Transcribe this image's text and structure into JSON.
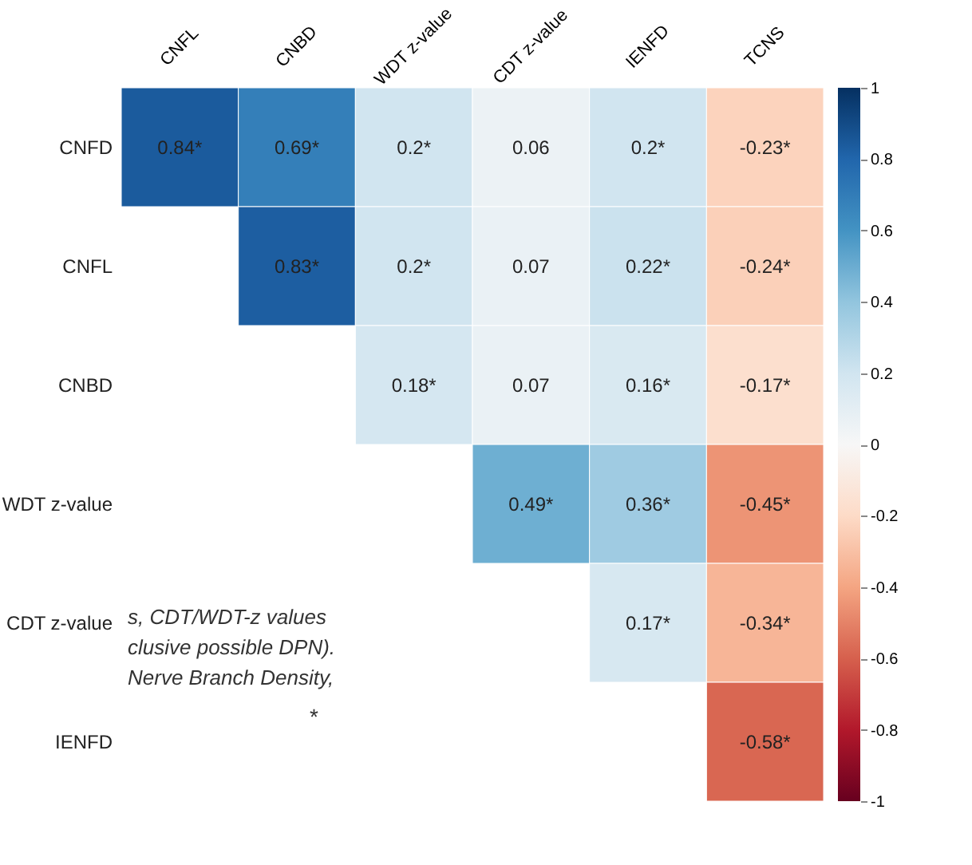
{
  "chart_data": {
    "type": "heatmap",
    "categories": [
      "CNFL",
      "CNBD",
      "WDT z-value",
      "CDT z-value",
      "IENFD",
      "TCNS"
    ],
    "y_categories": [
      "CNFD",
      "CNFL",
      "CNBD",
      "WDT z-value",
      "CDT z-value",
      "IENFD"
    ],
    "cells": [
      [
        0.84,
        0.69,
        0.2,
        0.06,
        0.2,
        -0.23
      ],
      [
        null,
        0.83,
        0.2,
        0.07,
        0.22,
        -0.24
      ],
      [
        null,
        null,
        0.18,
        0.07,
        0.16,
        -0.17
      ],
      [
        null,
        null,
        null,
        0.49,
        0.36,
        -0.45
      ],
      [
        null,
        null,
        null,
        null,
        0.17,
        -0.34
      ],
      [
        null,
        null,
        null,
        null,
        null,
        -0.58
      ]
    ],
    "cell_labels": [
      [
        "0.84*",
        "0.69*",
        "0.2*",
        "0.06",
        "0.2*",
        "-0.23*"
      ],
      [
        null,
        "0.83*",
        "0.2*",
        "0.07",
        "0.22*",
        "-0.24*"
      ],
      [
        null,
        null,
        "0.18*",
        "0.07",
        "0.16*",
        "-0.17*"
      ],
      [
        null,
        null,
        null,
        "0.49*",
        "0.36*",
        "-0.45*"
      ],
      [
        null,
        null,
        null,
        null,
        "0.17*",
        "-0.34*"
      ],
      [
        null,
        null,
        null,
        null,
        null,
        "-0.58*"
      ]
    ],
    "clim": [
      -1,
      1
    ],
    "cticks": [
      -1,
      -0.8,
      -0.6,
      -0.4,
      -0.2,
      0,
      0.2,
      0.4,
      0.6,
      0.8,
      1
    ],
    "grid": false,
    "annotations": [
      "*",
      "s, CDT/WDT-z values",
      "clusive possible DPN).",
      "Nerve Branch Density,"
    ]
  }
}
